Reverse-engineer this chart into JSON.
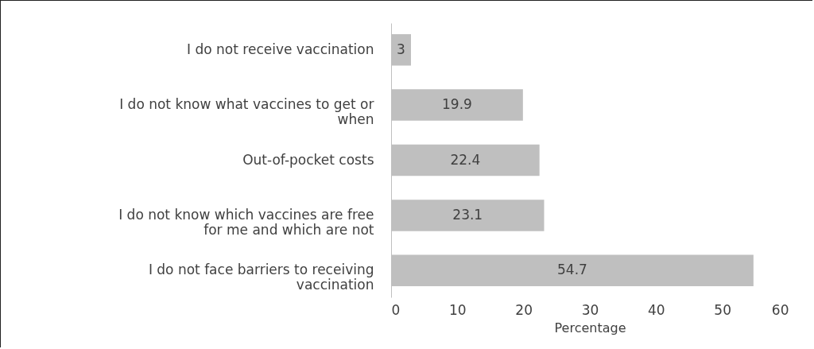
{
  "chart_data": {
    "type": "bar",
    "orientation": "horizontal",
    "categories": [
      "I do not receive vaccination",
      "I do not know what vaccines to get or when",
      "Out-of-pocket costs",
      "I do not know which vaccines are free for me and which are not",
      "I do not face barriers to receiving vaccination"
    ],
    "values": [
      3,
      19.9,
      22.4,
      23.1,
      54.7
    ],
    "color": "#bfbfbf",
    "data_labels": true,
    "xlabel": "Percentage",
    "xlim": [
      0,
      60
    ],
    "xticks": [
      0,
      10,
      20,
      30,
      40,
      50,
      60
    ],
    "grid": false
  }
}
